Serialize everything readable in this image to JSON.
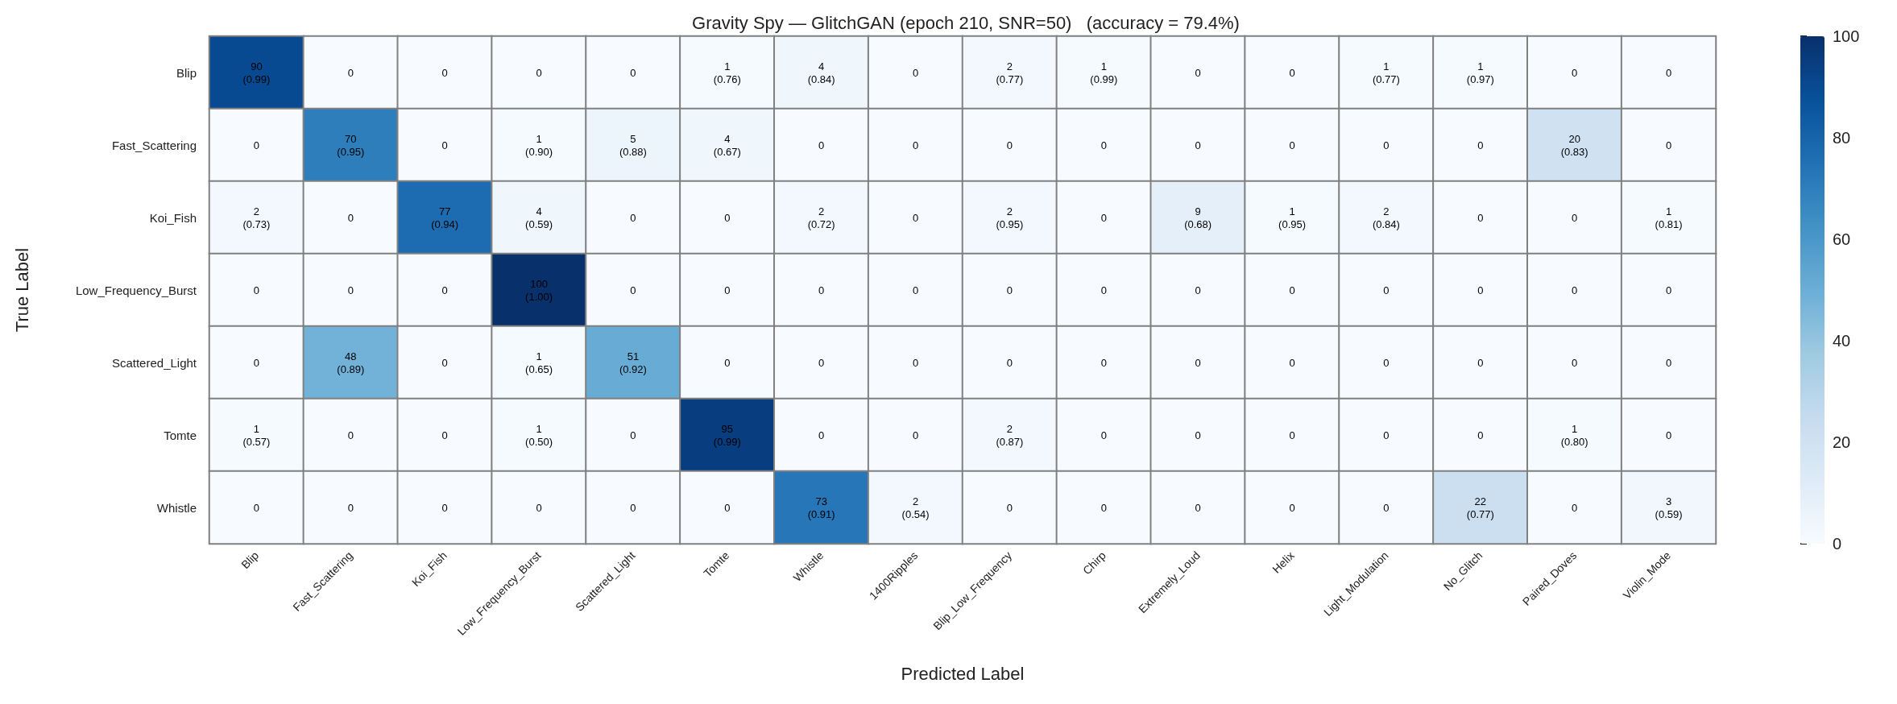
{
  "chart_data": {
    "type": "heatmap",
    "title": "Gravity Spy — GlitchGAN (epoch 210, SNR=50)   (accuracy = 79.4%)",
    "xlabel": "Predicted Label",
    "ylabel": "True Label",
    "clim": [
      0,
      100
    ],
    "cticks": [
      0,
      20,
      40,
      60,
      80,
      100
    ],
    "categories": [
      "Blip",
      "Fast_Scattering",
      "Koi_Fish",
      "Low_Frequency_Burst",
      "Scattered_Light",
      "Tomte",
      "Whistle",
      "1400Ripples",
      "Blip_Low_Frequency",
      "Chirp",
      "Extremely_Loud",
      "Helix",
      "Light_Modulation",
      "No_Glitch",
      "Paired_Doves",
      "Violin_Mode"
    ],
    "y_categories": [
      "Blip",
      "Fast_Scattering",
      "Koi_Fish",
      "Low_Frequency_Burst",
      "Scattered_Light",
      "Tomte",
      "Whistle"
    ],
    "cells": [
      [
        90,
        0,
        0,
        0,
        0,
        1,
        4,
        0,
        2,
        1,
        0,
        0,
        1,
        1,
        0,
        0
      ],
      [
        0,
        70,
        0,
        1,
        5,
        4,
        0,
        0,
        0,
        0,
        0,
        0,
        0,
        0,
        20,
        0
      ],
      [
        2,
        0,
        77,
        4,
        0,
        0,
        2,
        0,
        2,
        0,
        9,
        1,
        2,
        0,
        0,
        1
      ],
      [
        0,
        0,
        0,
        100,
        0,
        0,
        0,
        0,
        0,
        0,
        0,
        0,
        0,
        0,
        0,
        0
      ],
      [
        0,
        48,
        0,
        1,
        51,
        0,
        0,
        0,
        0,
        0,
        0,
        0,
        0,
        0,
        0,
        0
      ],
      [
        1,
        0,
        0,
        1,
        0,
        95,
        0,
        0,
        2,
        0,
        0,
        0,
        0,
        0,
        1,
        0
      ],
      [
        0,
        0,
        0,
        0,
        0,
        0,
        73,
        2,
        0,
        0,
        0,
        0,
        0,
        22,
        0,
        3
      ]
    ],
    "cell_labels": [
      [
        "90\n(0.99)",
        "0",
        "0",
        "0",
        "0",
        "1\n(0.76)",
        "4\n(0.84)",
        "0",
        "2\n(0.77)",
        "1\n(0.99)",
        "0",
        "0",
        "1\n(0.77)",
        "1\n(0.97)",
        "0",
        "0"
      ],
      [
        "0",
        "70\n(0.95)",
        "0",
        "1\n(0.90)",
        "5\n(0.88)",
        "4\n(0.67)",
        "0",
        "0",
        "0",
        "0",
        "0",
        "0",
        "0",
        "0",
        "20\n(0.83)",
        "0"
      ],
      [
        "2\n(0.73)",
        "0",
        "77\n(0.94)",
        "4\n(0.59)",
        "0",
        "0",
        "2\n(0.72)",
        "0",
        "2\n(0.95)",
        "0",
        "9\n(0.68)",
        "1\n(0.95)",
        "2\n(0.84)",
        "0",
        "0",
        "1\n(0.81)"
      ],
      [
        "0",
        "0",
        "0",
        "100\n(1.00)",
        "0",
        "0",
        "0",
        "0",
        "0",
        "0",
        "0",
        "0",
        "0",
        "0",
        "0",
        "0"
      ],
      [
        "0",
        "48\n(0.89)",
        "0",
        "1\n(0.65)",
        "51\n(0.92)",
        "0",
        "0",
        "0",
        "0",
        "0",
        "0",
        "0",
        "0",
        "0",
        "0",
        "0"
      ],
      [
        "1\n(0.57)",
        "0",
        "0",
        "1\n(0.50)",
        "0",
        "95\n(0.99)",
        "0",
        "0",
        "2\n(0.87)",
        "0",
        "0",
        "0",
        "0",
        "0",
        "1\n(0.80)",
        "0"
      ],
      [
        "0",
        "0",
        "0",
        "0",
        "0",
        "0",
        "73\n(0.91)",
        "2\n(0.54)",
        "0",
        "0",
        "0",
        "0",
        "0",
        "22\n(0.77)",
        "0",
        "3\n(0.59)"
      ]
    ]
  }
}
